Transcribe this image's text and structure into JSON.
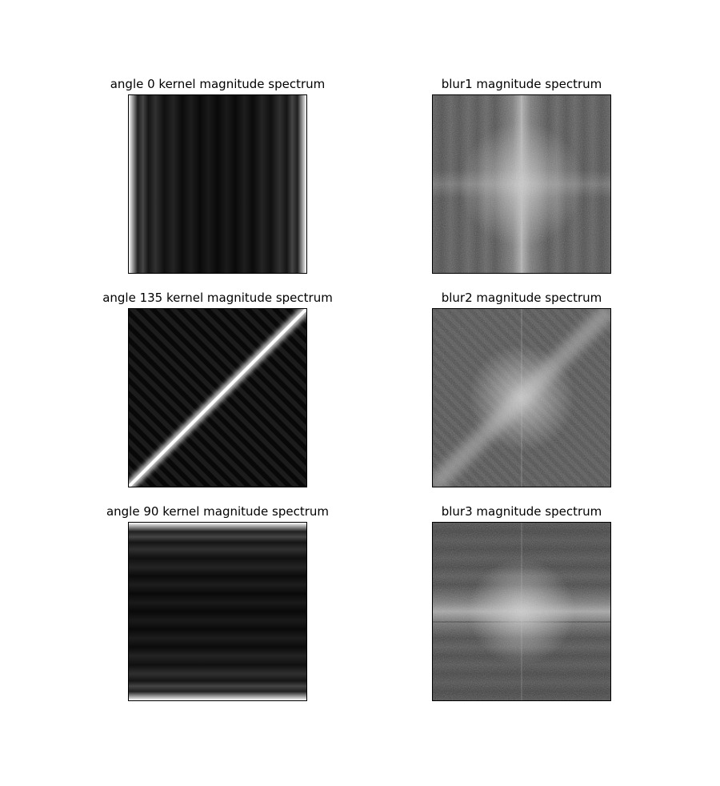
{
  "figure": {
    "panels": [
      {
        "id": "k0",
        "title": "angle 0 kernel magnitude spectrum",
        "kind": "kernel",
        "orientation": "vertical"
      },
      {
        "id": "b1",
        "title": "blur1 magnitude spectrum",
        "kind": "spectrum",
        "orientation": "vertical"
      },
      {
        "id": "k135",
        "title": "angle 135 kernel magnitude spectrum",
        "kind": "kernel",
        "orientation": "diagonal"
      },
      {
        "id": "b2",
        "title": "blur2 magnitude spectrum",
        "kind": "spectrum",
        "orientation": "diagonal"
      },
      {
        "id": "k90",
        "title": "angle 90 kernel magnitude spectrum",
        "kind": "kernel",
        "orientation": "horizontal"
      },
      {
        "id": "b3",
        "title": "blur3 magnitude spectrum",
        "kind": "spectrum",
        "orientation": "horizontal"
      }
    ]
  }
}
